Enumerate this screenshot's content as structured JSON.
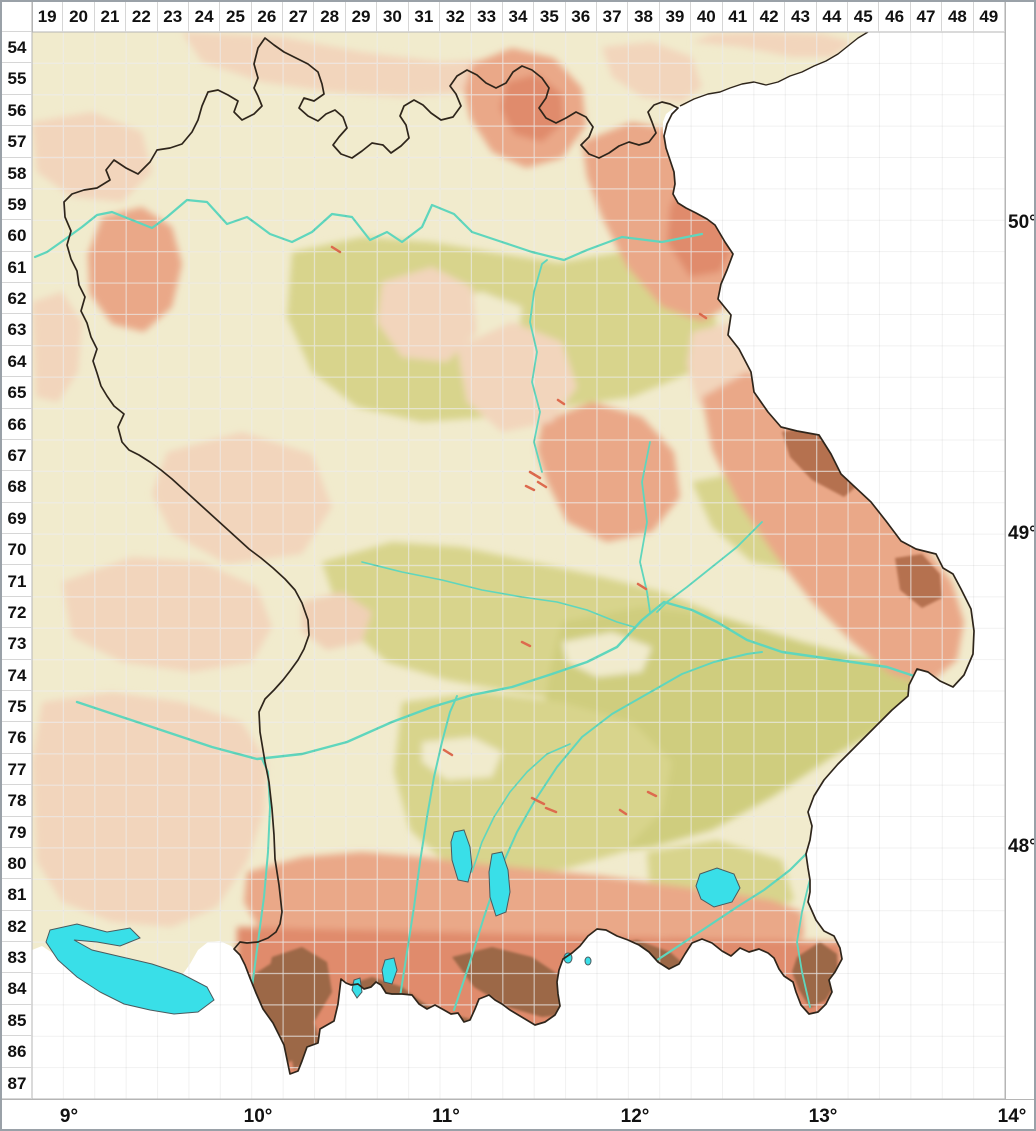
{
  "app": {
    "description": "Topographic grid map of Bavaria with TK25 quadrant grid"
  },
  "grid": {
    "column_labels": [
      "19",
      "20",
      "21",
      "22",
      "23",
      "24",
      "25",
      "26",
      "27",
      "28",
      "29",
      "30",
      "31",
      "32",
      "33",
      "34",
      "35",
      "36",
      "37",
      "38",
      "39",
      "40",
      "41",
      "42",
      "43",
      "44",
      "45",
      "46",
      "47",
      "48",
      "49"
    ],
    "row_labels": [
      "54",
      "55",
      "56",
      "57",
      "58",
      "59",
      "60",
      "61",
      "62",
      "63",
      "64",
      "65",
      "66",
      "67",
      "68",
      "69",
      "70",
      "71",
      "72",
      "73",
      "74",
      "75",
      "76",
      "77",
      "78",
      "79",
      "80",
      "81",
      "82",
      "83",
      "84",
      "85",
      "86",
      "87"
    ]
  },
  "axes": {
    "latitude_labels": [
      "50°",
      "49°",
      "48°"
    ],
    "longitude_labels": [
      "9°",
      "10°",
      "11°",
      "12°",
      "13°",
      "14°"
    ]
  },
  "colors": {
    "page_background": "#ffffff",
    "outer_border": "#9aa1a8",
    "map_border": "#b5b5b5",
    "header_text": "#111111",
    "header_separator": "#d6d6d6",
    "terrain_base": "#f1ebcd",
    "terrain_olive": "#d8d48c",
    "terrain_olive_deep": "#cfcd7e",
    "terrain_washed": "#f2d5bc",
    "terrain_pale_pink": "#f0d0b6",
    "terrain_salmon": "#eaa888",
    "terrain_salmon_deep": "#e08b6c",
    "terrain_brown": "#9c6847",
    "terrain_ridge": "#b5714f",
    "river": "#5fd6bd",
    "lake_fill": "#39dfe8",
    "lake_outline": "#4a5a5e",
    "boundary": "#2e251b",
    "grid_on_terrain": "rgba(255,255,255,0.65)",
    "grid_shadow": "rgba(60,60,60,0.07)",
    "nodata": "#ffffff",
    "urban": "#dd6a4e"
  }
}
